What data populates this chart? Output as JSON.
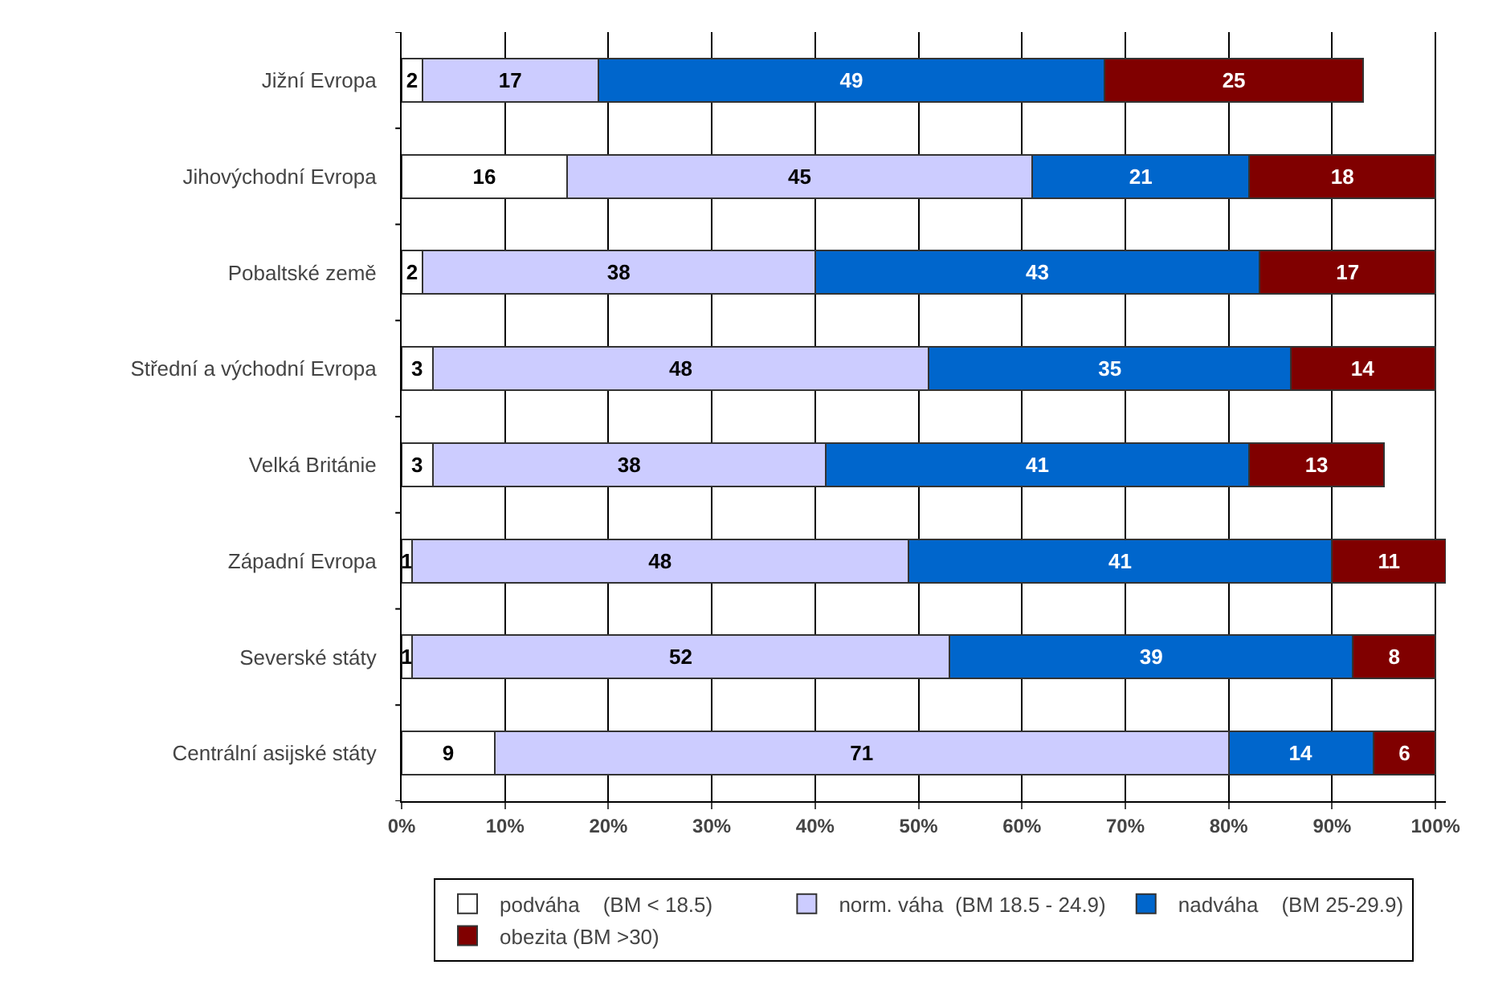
{
  "chart_data": {
    "type": "bar",
    "orientation": "horizontal",
    "stacked": true,
    "categories": [
      "Jižní Evropa",
      "Jihovýchodní Evropa",
      "Pobaltské země",
      "Střední a východní Evropa",
      "Velká Británie",
      "Západní Evropa",
      "Severské státy",
      "Centrální asijské státy"
    ],
    "series": [
      {
        "name": "podváha    (BM < 18.5)",
        "color": "#ffffff",
        "values": [
          2,
          16,
          2,
          3,
          3,
          1,
          1,
          9
        ]
      },
      {
        "name": "norm. váha  (BM 18.5 - 24.9)",
        "color": "#ccccff",
        "values": [
          17,
          45,
          38,
          48,
          38,
          48,
          52,
          71
        ]
      },
      {
        "name": "nadváha    (BM 25-29.9)",
        "color": "#0066cc",
        "values": [
          49,
          21,
          43,
          35,
          41,
          41,
          39,
          14
        ]
      },
      {
        "name": "obezita (BM >30)",
        "color": "#800000",
        "values": [
          25,
          18,
          17,
          14,
          13,
          11,
          8,
          6
        ]
      }
    ],
    "data_labels": true,
    "xlim": [
      0,
      101
    ],
    "xticks": [
      {
        "value": 0,
        "label": "0%"
      },
      {
        "value": 10,
        "label": "10%"
      },
      {
        "value": 20,
        "label": "20%"
      },
      {
        "value": 30,
        "label": "30%"
      },
      {
        "value": 40,
        "label": "40%"
      },
      {
        "value": 50,
        "label": "50%"
      },
      {
        "value": 60,
        "label": "60%"
      },
      {
        "value": 70,
        "label": "70%"
      },
      {
        "value": 80,
        "label": "80%"
      },
      {
        "value": 90,
        "label": "90%"
      },
      {
        "value": 100,
        "label": "100%"
      }
    ],
    "grid": "x",
    "legend": "bottom"
  }
}
